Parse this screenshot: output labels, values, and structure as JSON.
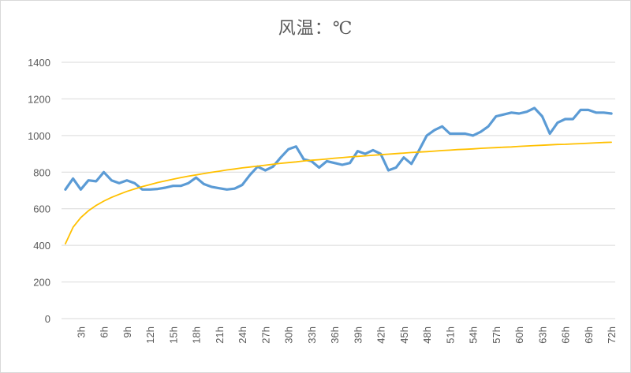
{
  "chart_data": {
    "type": "line",
    "title": "风温：℃",
    "xlabel": "",
    "ylabel": "",
    "ylim": [
      0,
      1400
    ],
    "yticks": [
      0,
      200,
      400,
      600,
      800,
      1000,
      1200,
      1400
    ],
    "grid": true,
    "legend": "none",
    "x_tick_labels": [
      "3h",
      "6h",
      "9h",
      "12h",
      "15h",
      "18h",
      "21h",
      "24h",
      "27h",
      "30h",
      "33h",
      "36h",
      "39h",
      "42h",
      "45h",
      "48h",
      "51h",
      "54h",
      "57h",
      "60h",
      "63h",
      "66h",
      "69h",
      "72h"
    ],
    "x": [
      1,
      2,
      3,
      4,
      5,
      6,
      7,
      8,
      9,
      10,
      11,
      12,
      13,
      14,
      15,
      16,
      17,
      18,
      19,
      20,
      21,
      22,
      23,
      24,
      25,
      26,
      27,
      28,
      29,
      30,
      31,
      32,
      33,
      34,
      35,
      36,
      37,
      38,
      39,
      40,
      41,
      42,
      43,
      44,
      45,
      46,
      47,
      48,
      49,
      50,
      51,
      52,
      53,
      54,
      55,
      56,
      57,
      58,
      59,
      60,
      61,
      62,
      63,
      64,
      65,
      66,
      67,
      68,
      69,
      70,
      71,
      72
    ],
    "series": [
      {
        "color": "#5b9bd5",
        "values": [
          705,
          765,
          705,
          755,
          750,
          800,
          755,
          740,
          755,
          740,
          705,
          705,
          708,
          715,
          725,
          725,
          740,
          770,
          735,
          720,
          712,
          705,
          710,
          730,
          785,
          830,
          810,
          830,
          880,
          925,
          940,
          870,
          860,
          825,
          860,
          850,
          840,
          850,
          915,
          900,
          920,
          900,
          810,
          825,
          880,
          845,
          920,
          1000,
          1030,
          1050,
          1010,
          1010,
          1010,
          1000,
          1020,
          1050,
          1105,
          1115,
          1125,
          1120,
          1130,
          1150,
          1105,
          1010,
          1070,
          1090,
          1090,
          1140,
          1140,
          1125,
          1125,
          1120
        ]
      },
      {
        "color": "#ffc000",
        "type": "log-trendline",
        "values": [
          409,
          499,
          552,
          589,
          618,
          642,
          662,
          679,
          695,
          708,
          721,
          732,
          743,
          752,
          761,
          770,
          778,
          785,
          792,
          799,
          805,
          812,
          817,
          823,
          828,
          833,
          838,
          843,
          848,
          852,
          856,
          861,
          865,
          868,
          872,
          876,
          879,
          883,
          886,
          889,
          892,
          895,
          898,
          901,
          904,
          907,
          910,
          912,
          915,
          918,
          920,
          923,
          925,
          927,
          930,
          932,
          934,
          936,
          938,
          941,
          943,
          945,
          947,
          949,
          951,
          952,
          954,
          956,
          958,
          960,
          962,
          963
        ]
      }
    ]
  }
}
